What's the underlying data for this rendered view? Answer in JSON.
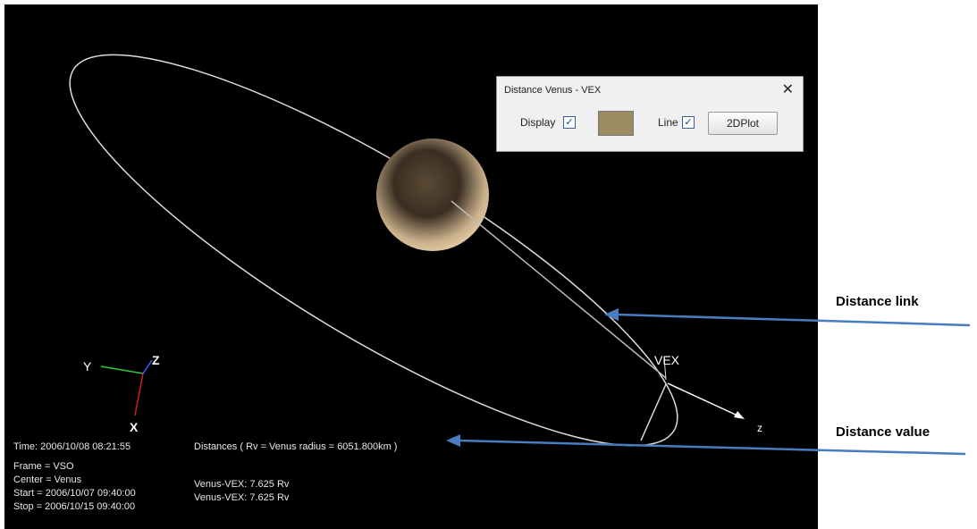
{
  "dialog": {
    "title": "Distance Venus - VEX",
    "close": "✕",
    "display_label": "Display",
    "line_label": "Line",
    "button": "2DPlot"
  },
  "scene": {
    "axis_y": "Y",
    "axis_z": "Z",
    "axis_x": "X",
    "spacecraft": "VEX",
    "direction": "z"
  },
  "info": {
    "time": "Time: 2006/10/08 08:21:55",
    "distances_header": "Distances ( Rv = Venus radius = 6051.800km )",
    "frame": "Frame = VSO",
    "center": "Center = Venus",
    "start": "Start = 2006/10/07 09:40:00",
    "stop": "Stop = 2006/10/15 09:40:00",
    "distances": [
      "Venus-VEX: 7.625 Rv",
      "Venus-VEX: 7.625 Rv"
    ]
  },
  "annotations": [
    "Distance link",
    "Distance value"
  ]
}
